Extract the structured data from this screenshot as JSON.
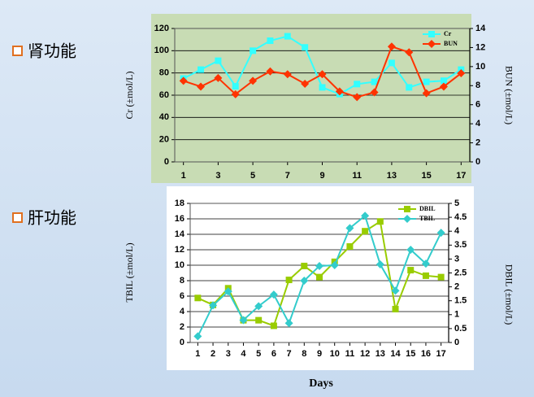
{
  "labels": [
    "肾功能",
    "肝功能"
  ],
  "chart_data": [
    {
      "type": "line",
      "ylabel": "Cr (±mol/L)",
      "y2label": "BUN (±mol/L)",
      "legend": "upper right",
      "grid": true,
      "x": [
        1,
        2,
        3,
        4,
        5,
        6,
        7,
        8,
        9,
        10,
        11,
        12,
        13,
        14,
        15,
        16,
        17
      ],
      "xlim": [
        0.5,
        17.5
      ],
      "xticks": [
        1,
        3,
        5,
        7,
        9,
        11,
        13,
        15,
        17
      ],
      "ylim": [
        0,
        120
      ],
      "yticks": [
        0,
        20,
        40,
        60,
        80,
        100,
        120
      ],
      "y2lim": [
        0,
        14
      ],
      "y2ticks": [
        0,
        2,
        4,
        6,
        8,
        10,
        12,
        14
      ],
      "series": [
        {
          "name": "Cr",
          "color": "#33ffff",
          "marker": "square",
          "axis": "y",
          "values": [
            75,
            83,
            91,
            68,
            100,
            109,
            113,
            103,
            67,
            61,
            70,
            72,
            89,
            67,
            72,
            73,
            83
          ]
        },
        {
          "name": "BUN",
          "color": "#ff3300",
          "marker": "diamond",
          "axis": "y2",
          "values": [
            8.5,
            7.9,
            8.8,
            7.1,
            8.5,
            9.5,
            9.2,
            8.2,
            9.2,
            7.4,
            6.8,
            7.3,
            12.1,
            11.5,
            7.2,
            7.9,
            9.3
          ]
        }
      ]
    },
    {
      "type": "line",
      "ylabel": "TBIL (±mol/L)",
      "y2label": "DBIL (±mol/L)",
      "xlabel": "Days",
      "legend": "upper right",
      "grid": true,
      "x": [
        1,
        2,
        3,
        4,
        5,
        6,
        7,
        8,
        9,
        10,
        11,
        12,
        13,
        14,
        15,
        16,
        17
      ],
      "xlim": [
        0.5,
        17.5
      ],
      "xticks": [
        1,
        2,
        3,
        4,
        5,
        6,
        7,
        8,
        9,
        10,
        11,
        12,
        13,
        14,
        15,
        16,
        17
      ],
      "ylim": [
        0,
        18
      ],
      "yticks": [
        0,
        2,
        4,
        6,
        8,
        10,
        12,
        14,
        16,
        18
      ],
      "y2lim": [
        0,
        5
      ],
      "y2ticks": [
        0,
        0.5,
        1,
        1.5,
        2,
        2.5,
        3,
        3.5,
        4,
        4.5,
        5
      ],
      "series": [
        {
          "name": "DBIL",
          "color": "#99cc00",
          "marker": "square",
          "axis": "y2",
          "values": [
            1.6,
            1.35,
            1.95,
            0.8,
            0.8,
            0.6,
            2.25,
            2.75,
            2.35,
            2.9,
            3.45,
            4.0,
            4.35,
            1.2,
            2.6,
            2.4,
            2.35
          ]
        },
        {
          "name": "TBIL",
          "color": "#33cccc",
          "marker": "diamond",
          "axis": "y",
          "values": [
            0.8,
            4.8,
            6.6,
            2.9,
            4.7,
            6.2,
            2.5,
            8.0,
            9.9,
            10.0,
            14.8,
            16.4,
            10.1,
            6.7,
            12.0,
            10.2,
            14.2
          ]
        }
      ]
    }
  ]
}
